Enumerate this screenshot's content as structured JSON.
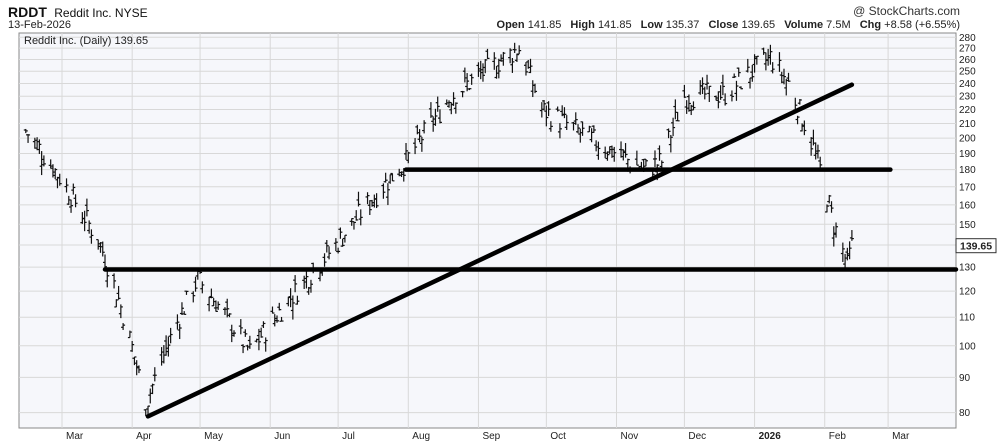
{
  "header": {
    "symbol": "RDDT",
    "company": "Reddit Inc. NYSE",
    "date": "13-Feb-2026",
    "copyright": "@ StockCharts.com",
    "open_label": "Open",
    "open": "141.85",
    "high_label": "High",
    "high": "141.85",
    "low_label": "Low",
    "low": "135.37",
    "close_label": "Close",
    "close": "139.65",
    "volume_label": "Volume",
    "volume": "7.5M",
    "chg_label": "Chg",
    "chg": "+8.58 (+6.55%)"
  },
  "colors": {
    "grid": "#d8d8d8",
    "plot_bg": "#f6f7fb",
    "bars": "#111111",
    "trendlines": "#000000",
    "last_price_box": "#ffffff"
  },
  "chart_data": {
    "type": "ohlc",
    "title": "Reddit Inc. (Daily) 139.65",
    "last_price_label": "139.65",
    "x_ticks": [
      "Mar",
      "Apr",
      "May",
      "Jun",
      "Jul",
      "Aug",
      "Sep",
      "Oct",
      "Nov",
      "Dec",
      "2026",
      "Feb",
      "Mar"
    ],
    "y_ticks": [
      80,
      90,
      100,
      110,
      120,
      130,
      140,
      150,
      160,
      170,
      180,
      190,
      200,
      210,
      220,
      230,
      240,
      250,
      260,
      270,
      280
    ],
    "y_range": [
      76,
      284
    ],
    "y_scale": "log",
    "grid": true,
    "x_dates": [
      "2025-02-13",
      "2025-03-18",
      "2025-04-07",
      "2025-04-30",
      "2025-05-23",
      "2025-06-17",
      "2025-06-30",
      "2025-07-31",
      "2025-08-20",
      "2025-09-19",
      "2025-09-29",
      "2025-10-20",
      "2025-11-13",
      "2025-11-21",
      "2025-12-01",
      "2025-12-19",
      "2026-01-08",
      "2026-01-16",
      "2026-01-29",
      "2026-02-05",
      "2026-02-11",
      "2026-02-13"
    ],
    "series": [
      {
        "values": [
          205,
          140,
          82,
          125,
          98,
          125,
          140,
          185,
          230,
          270,
          220,
          200,
          180,
          185,
          230,
          232,
          262,
          240,
          185,
          150,
          131,
          139.65
        ]
      }
    ],
    "annotations": [
      {
        "type": "trendline",
        "from": [
          "2025-04-08",
          79
        ],
        "to": [
          "2026-02-13",
          239
        ]
      },
      {
        "type": "horizontal",
        "from": "2025-03-20",
        "to": "2026-03-31",
        "value": 129
      },
      {
        "type": "horizontal",
        "from": "2025-07-31",
        "to": "2026-03-02",
        "value": 180
      }
    ]
  }
}
